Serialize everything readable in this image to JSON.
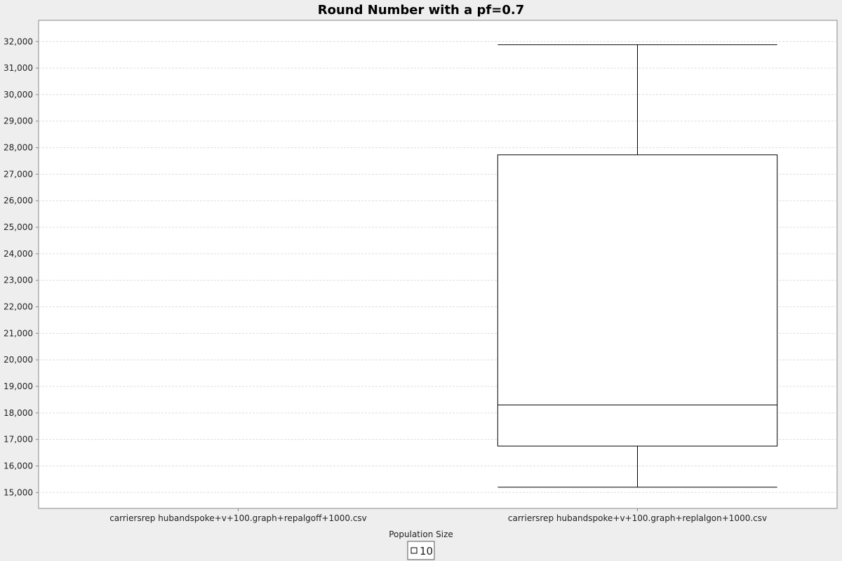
{
  "chart_data": {
    "type": "box",
    "title": "Round Number with a pf=0.7",
    "xlabel": "Population Size",
    "ylabel": "",
    "ylim": [
      14400,
      32800
    ],
    "y_ticks": [
      15000,
      16000,
      17000,
      18000,
      19000,
      20000,
      21000,
      22000,
      23000,
      24000,
      25000,
      26000,
      27000,
      28000,
      29000,
      30000,
      31000,
      32000
    ],
    "grid": true,
    "categories": [
      "carriersrep hubandspoke+v+100.graph+repalgoff+1000.csv",
      "carriersrep hubandspoke+v+100.graph+replalgon+1000.csv"
    ],
    "series": [
      {
        "name": "10",
        "boxes": [
          null,
          {
            "whisker_low": 15200,
            "q1": 16750,
            "median": 18300,
            "q3": 27730,
            "whisker_high": 31880
          }
        ]
      }
    ],
    "legend": {
      "position": "bottom",
      "entries": [
        "10"
      ]
    }
  }
}
